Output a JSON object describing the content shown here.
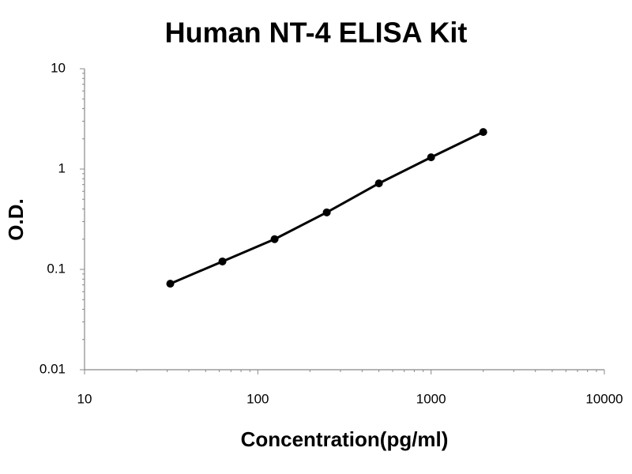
{
  "chart_data": {
    "type": "line",
    "title": "Human NT-4 ELISA Kit",
    "xlabel": "Concentration(pg/ml)",
    "ylabel": "O.D.",
    "x": [
      31.25,
      62.5,
      125,
      250,
      500,
      1000,
      2000
    ],
    "values": [
      0.072,
      0.12,
      0.2,
      0.37,
      0.72,
      1.31,
      2.34
    ],
    "color": "#000000",
    "markers": true,
    "xscale": "log",
    "yscale": "log",
    "xlim": [
      10,
      10000
    ],
    "xticks": [
      10,
      100,
      1000,
      10000
    ],
    "ylim": [
      0.01,
      10
    ],
    "yticks": [
      0.01,
      0.1,
      1,
      10
    ]
  }
}
